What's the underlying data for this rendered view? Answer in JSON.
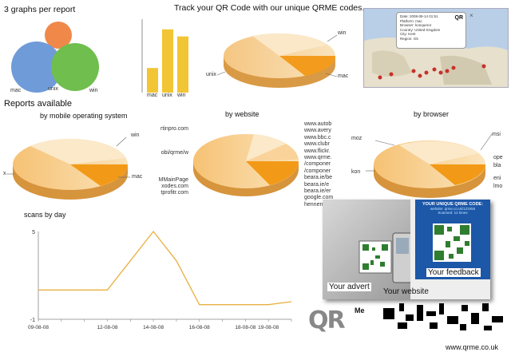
{
  "header": {
    "top_left": "3 graphs per report",
    "top_center": "Track your QR Code with our unique QRME codes."
  },
  "venn": {
    "labels": [
      "mac",
      "unix",
      "win"
    ],
    "colors": {
      "top": "#f0884a",
      "left": "#6f9bd8",
      "right": "#70be4e"
    }
  },
  "mini_bar": {
    "categories": [
      "mac",
      "unix",
      "win"
    ],
    "values": [
      0.35,
      0.9,
      0.8
    ],
    "color": "#f2c534"
  },
  "pie_top": {
    "labels": {
      "a": "win",
      "b": "unix",
      "c": "mac"
    }
  },
  "map_popup": {
    "lines": [
      "Date:  2008-08-14 01:51",
      "Platform:  mac",
      "Browser:  konqueror",
      "Country:  United Kingdom",
      "City:  Kent",
      "Region:  G5"
    ],
    "logo": "QR"
  },
  "reports_title": "Reports available",
  "report_os": {
    "title": "by mobile operating system",
    "labels": {
      "a": "win",
      "b": "x",
      "c": "mac"
    }
  },
  "report_website": {
    "title": "by website",
    "left_labels": [
      "rtinpro.com",
      "obi/qrme/w",
      "MMainPage",
      "xodes.com",
      "tprofitr.com"
    ],
    "right_labels": [
      "www.autob",
      "www.avery",
      "www.bbc.c",
      "www.clubr",
      "www.flickr.",
      "www.qrme.",
      "/componer",
      "/componer",
      "beara.ie/be",
      "beara.ie/e",
      "beara.ie/er",
      "google.com",
      "hennerdum"
    ]
  },
  "report_browser": {
    "title": "by browser",
    "labels": {
      "a": "moz",
      "b": "msi",
      "c": "kon",
      "d": "ope",
      "e": "bla",
      "f": "eni",
      "g": "lmo"
    }
  },
  "line_chart": {
    "chart_data": {
      "type": "line",
      "title": "scans by day",
      "categories": [
        "09-08-08",
        "10-08-08",
        "11-08-08",
        "12-08-08",
        "13-08-08",
        "14-08-08",
        "15-08-08",
        "16-08-08",
        "17-08-08",
        "18-08-08",
        "19-08-08",
        "20-08-08"
      ],
      "values": [
        1,
        1,
        1,
        1,
        3,
        5,
        3,
        0,
        0,
        0,
        0,
        0.2
      ],
      "tick_labels": [
        "09-08-08",
        "12-08-08",
        "14-08-08",
        "16-08-08",
        "18-08-08",
        "19-08-08"
      ],
      "y_ticks": [
        "5",
        "-1"
      ],
      "ylim": [
        -1,
        5
      ],
      "color": "#e8b040"
    }
  },
  "promo": {
    "feedback_box": {
      "title": "YOUR UNIQUE QRME CODE:",
      "line1": "website: qrme.co.uk/123456",
      "line2": "Scanned: 12 times",
      "label": "Your feedback"
    },
    "advert_label": "Your advert",
    "website_label": "Your website",
    "logo_text": "QR",
    "logo_me": "Me",
    "url": "www.qrme.co.uk"
  }
}
